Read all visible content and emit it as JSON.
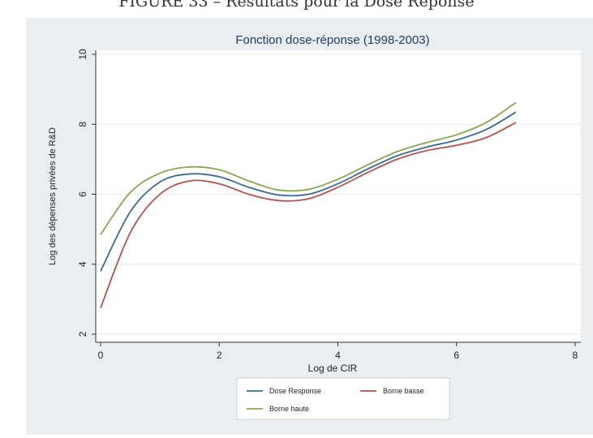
{
  "figure_caption": "FIGURE 33 – Résultats pour la Dose Réponse",
  "chart_data": {
    "type": "line",
    "title": "Fonction dose-réponse (1998-2003)",
    "xlabel": "Log de CIR",
    "ylabel": "Log des dépenses privées de R&D",
    "xlim": [
      0,
      8
    ],
    "ylim": [
      2,
      10
    ],
    "xticks": [
      0,
      2,
      4,
      6,
      8
    ],
    "yticks": [
      2,
      4,
      6,
      8,
      10
    ],
    "grid": true,
    "legend_position": "bottom",
    "x": [
      0,
      0.5,
      1,
      1.5,
      2,
      2.5,
      3,
      3.5,
      4,
      4.5,
      5,
      5.5,
      6,
      6.5,
      7
    ],
    "series": [
      {
        "name": "Dose Response",
        "color": "#3d6b8f",
        "values": [
          3.8,
          5.5,
          6.35,
          6.58,
          6.5,
          6.2,
          5.98,
          6.0,
          6.3,
          6.72,
          7.1,
          7.35,
          7.55,
          7.85,
          8.35
        ]
      },
      {
        "name": "Borne basse",
        "color": "#b4524f",
        "values": [
          2.75,
          4.9,
          6.0,
          6.38,
          6.3,
          6.0,
          5.82,
          5.87,
          6.2,
          6.62,
          7.0,
          7.25,
          7.4,
          7.62,
          8.05
        ]
      },
      {
        "name": "Borne haute",
        "color": "#86a651",
        "values": [
          4.85,
          6.05,
          6.6,
          6.78,
          6.7,
          6.38,
          6.12,
          6.14,
          6.43,
          6.84,
          7.22,
          7.48,
          7.7,
          8.05,
          8.62
        ]
      }
    ]
  }
}
